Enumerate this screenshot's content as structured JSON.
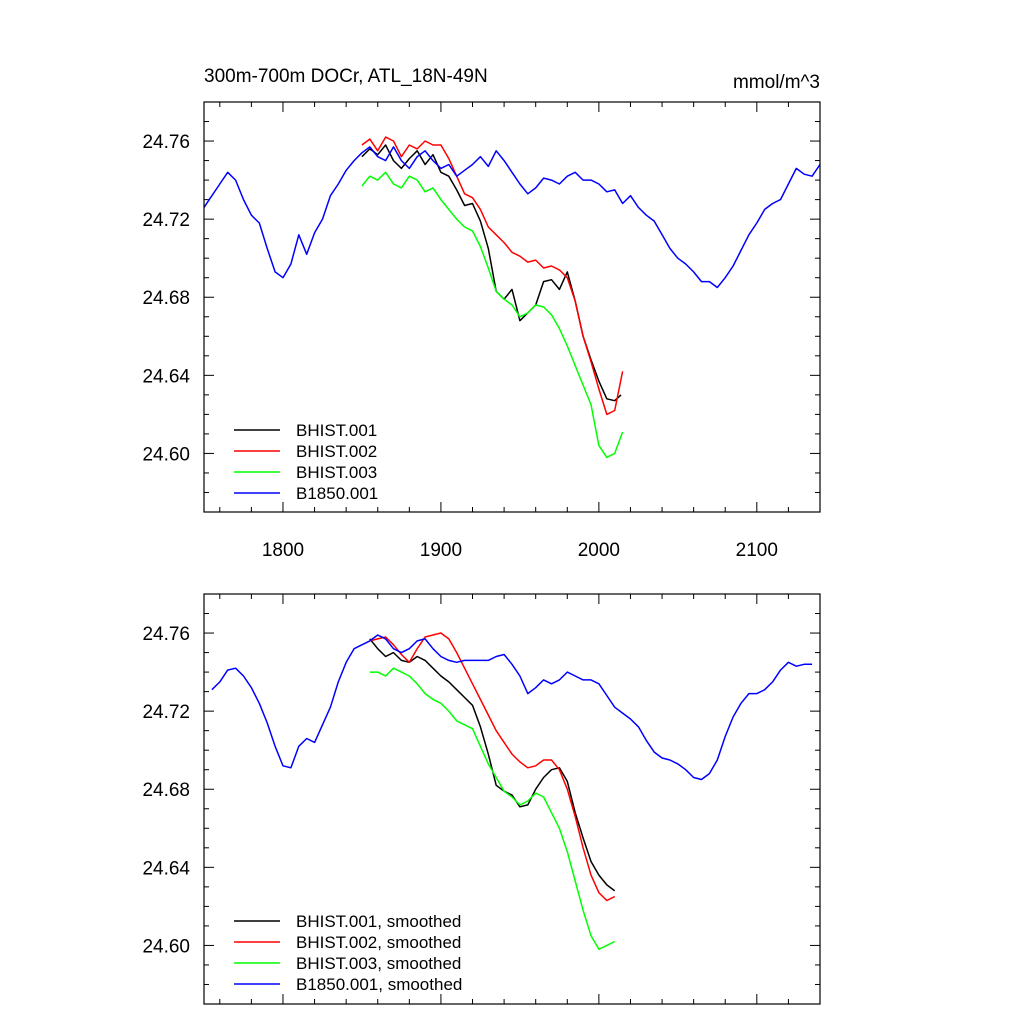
{
  "title": "300m-700m DOCr, ATL_18N-49N",
  "units": "mmol/m^3",
  "colors": {
    "BHIST.001": "#000000",
    "BHIST.002": "#ff0000",
    "BHIST.003": "#00ff00",
    "B1850.001": "#0000ff"
  },
  "chart_data": [
    {
      "type": "line",
      "title": "300m-700m DOCr, ATL_18N-49N",
      "units_label": "mmol/m^3",
      "xlim": [
        1750,
        2140
      ],
      "ylim": [
        24.57,
        24.78
      ],
      "x_ticks": [
        1800,
        1900,
        2000,
        2100
      ],
      "x_tick_labels": [
        "1800",
        "1900",
        "2000",
        "2100"
      ],
      "show_x_tick_labels": true,
      "y_ticks": [
        24.6,
        24.64,
        24.68,
        24.72,
        24.76
      ],
      "y_tick_labels": [
        "24.60",
        "24.64",
        "24.68",
        "24.72",
        "24.76"
      ],
      "legend_location": "bottom-left",
      "legend": [
        "BHIST.001",
        "BHIST.002",
        "BHIST.003",
        "B1850.001"
      ],
      "series": [
        {
          "name": "BHIST.001",
          "color": "#000000",
          "x": [
            1850,
            1855,
            1860,
            1865,
            1870,
            1875,
            1880,
            1885,
            1890,
            1895,
            1900,
            1905,
            1910,
            1915,
            1920,
            1925,
            1930,
            1935,
            1940,
            1945,
            1950,
            1955,
            1960,
            1965,
            1970,
            1975,
            1980,
            1985,
            1990,
            1995,
            2000,
            2005,
            2010,
            2014
          ],
          "y": [
            24.752,
            24.756,
            24.753,
            24.758,
            24.75,
            24.746,
            24.751,
            24.755,
            24.748,
            24.753,
            24.744,
            24.742,
            24.735,
            24.727,
            24.728,
            24.719,
            24.705,
            24.683,
            24.679,
            24.684,
            24.668,
            24.672,
            24.676,
            24.688,
            24.689,
            24.684,
            24.693,
            24.678,
            24.66,
            24.648,
            24.637,
            24.628,
            24.627,
            24.63
          ]
        },
        {
          "name": "BHIST.002",
          "color": "#ff0000",
          "x": [
            1850,
            1855,
            1860,
            1865,
            1870,
            1875,
            1880,
            1885,
            1890,
            1895,
            1900,
            1905,
            1910,
            1915,
            1920,
            1925,
            1930,
            1935,
            1940,
            1945,
            1950,
            1955,
            1960,
            1965,
            1970,
            1975,
            1980,
            1985,
            1990,
            1995,
            2000,
            2005,
            2010,
            2015
          ],
          "y": [
            24.758,
            24.761,
            24.755,
            24.762,
            24.76,
            24.752,
            24.758,
            24.756,
            24.76,
            24.758,
            24.758,
            24.751,
            24.742,
            24.733,
            24.731,
            24.725,
            24.716,
            24.712,
            24.708,
            24.703,
            24.701,
            24.698,
            24.699,
            24.695,
            24.696,
            24.694,
            24.69,
            24.678,
            24.66,
            24.647,
            24.633,
            24.62,
            24.622,
            24.642
          ]
        },
        {
          "name": "BHIST.003",
          "color": "#00ff00",
          "x": [
            1850,
            1855,
            1860,
            1865,
            1870,
            1875,
            1880,
            1885,
            1890,
            1895,
            1900,
            1905,
            1910,
            1915,
            1920,
            1925,
            1930,
            1935,
            1940,
            1945,
            1950,
            1955,
            1960,
            1965,
            1970,
            1975,
            1980,
            1985,
            1990,
            1995,
            2000,
            2005,
            2010,
            2015
          ],
          "y": [
            24.737,
            24.742,
            24.74,
            24.744,
            24.738,
            24.736,
            24.742,
            24.74,
            24.734,
            24.736,
            24.73,
            24.725,
            24.72,
            24.716,
            24.714,
            24.706,
            24.695,
            24.683,
            24.679,
            24.676,
            24.67,
            24.672,
            24.676,
            24.675,
            24.671,
            24.664,
            24.655,
            24.645,
            24.635,
            24.625,
            24.604,
            24.598,
            24.6,
            24.611
          ]
        },
        {
          "name": "B1850.001",
          "color": "#0000ff",
          "x": [
            1750,
            1755,
            1760,
            1765,
            1770,
            1775,
            1780,
            1785,
            1790,
            1795,
            1800,
            1805,
            1810,
            1815,
            1820,
            1825,
            1830,
            1835,
            1840,
            1845,
            1850,
            1855,
            1860,
            1865,
            1870,
            1875,
            1880,
            1885,
            1890,
            1895,
            1900,
            1905,
            1910,
            1915,
            1920,
            1925,
            1930,
            1935,
            1940,
            1945,
            1950,
            1955,
            1960,
            1965,
            1970,
            1975,
            1980,
            1985,
            1990,
            1995,
            2000,
            2005,
            2010,
            2015,
            2020,
            2025,
            2030,
            2035,
            2040,
            2045,
            2050,
            2055,
            2060,
            2065,
            2070,
            2075,
            2080,
            2085,
            2090,
            2095,
            2100,
            2105,
            2110,
            2115,
            2120,
            2125,
            2130,
            2135,
            2140
          ],
          "y": [
            24.726,
            24.732,
            24.738,
            24.744,
            24.74,
            24.73,
            24.722,
            24.718,
            24.705,
            24.693,
            24.69,
            24.697,
            24.712,
            24.702,
            24.713,
            24.72,
            24.732,
            24.738,
            24.745,
            24.75,
            24.754,
            24.757,
            24.752,
            24.75,
            24.757,
            24.75,
            24.746,
            24.752,
            24.755,
            24.75,
            24.746,
            24.748,
            24.742,
            24.745,
            24.748,
            24.752,
            24.747,
            24.755,
            24.75,
            24.744,
            24.738,
            24.733,
            24.736,
            24.741,
            24.74,
            24.738,
            24.742,
            24.744,
            24.74,
            24.74,
            24.738,
            24.734,
            24.735,
            24.728,
            24.732,
            24.726,
            24.722,
            24.719,
            24.712,
            24.705,
            24.7,
            24.697,
            24.693,
            24.688,
            24.688,
            24.685,
            24.69,
            24.696,
            24.704,
            24.712,
            24.718,
            24.725,
            24.728,
            24.73,
            24.738,
            24.746,
            24.743,
            24.742,
            24.748
          ]
        }
      ]
    },
    {
      "type": "line",
      "title": "",
      "xlim": [
        1750,
        2140
      ],
      "ylim": [
        24.57,
        24.78
      ],
      "x_ticks": [
        1800,
        1900,
        2000,
        2100
      ],
      "x_tick_labels": [],
      "show_x_tick_labels": false,
      "y_ticks": [
        24.6,
        24.64,
        24.68,
        24.72,
        24.76
      ],
      "y_tick_labels": [
        "24.60",
        "24.64",
        "24.68",
        "24.72",
        "24.76"
      ],
      "legend_location": "bottom-left",
      "legend": [
        "BHIST.001, smoothed",
        "BHIST.002, smoothed",
        "BHIST.003, smoothed",
        "B1850.001, smoothed"
      ],
      "series": [
        {
          "name": "BHIST.001, smoothed",
          "color": "#000000",
          "x": [
            1855,
            1860,
            1865,
            1870,
            1875,
            1880,
            1885,
            1890,
            1895,
            1900,
            1905,
            1910,
            1915,
            1920,
            1925,
            1930,
            1935,
            1940,
            1945,
            1950,
            1955,
            1960,
            1965,
            1970,
            1975,
            1980,
            1985,
            1990,
            1995,
            2000,
            2005,
            2010
          ],
          "y": [
            24.757,
            24.752,
            24.748,
            24.75,
            24.746,
            24.745,
            24.748,
            24.746,
            24.742,
            24.738,
            24.735,
            24.731,
            24.727,
            24.723,
            24.712,
            24.698,
            24.682,
            24.679,
            24.677,
            24.671,
            24.672,
            24.68,
            24.686,
            24.69,
            24.691,
            24.684,
            24.668,
            24.655,
            24.643,
            24.636,
            24.631,
            24.628
          ]
        },
        {
          "name": "BHIST.002, smoothed",
          "color": "#ff0000",
          "x": [
            1855,
            1860,
            1865,
            1870,
            1875,
            1880,
            1885,
            1890,
            1895,
            1900,
            1905,
            1910,
            1915,
            1920,
            1925,
            1930,
            1935,
            1940,
            1945,
            1950,
            1955,
            1960,
            1965,
            1970,
            1975,
            1980,
            1985,
            1990,
            1995,
            2000,
            2005,
            2010
          ],
          "y": [
            24.756,
            24.757,
            24.758,
            24.754,
            24.749,
            24.745,
            24.752,
            24.758,
            24.759,
            24.76,
            24.757,
            24.75,
            24.742,
            24.734,
            24.726,
            24.718,
            24.71,
            24.704,
            24.698,
            24.694,
            24.691,
            24.692,
            24.695,
            24.695,
            24.69,
            24.68,
            24.666,
            24.65,
            24.636,
            24.627,
            24.623,
            24.625
          ]
        },
        {
          "name": "BHIST.003, smoothed",
          "color": "#00ff00",
          "x": [
            1855,
            1860,
            1865,
            1870,
            1875,
            1880,
            1885,
            1890,
            1895,
            1900,
            1905,
            1910,
            1915,
            1920,
            1925,
            1930,
            1935,
            1940,
            1945,
            1950,
            1955,
            1960,
            1965,
            1970,
            1975,
            1980,
            1985,
            1990,
            1995,
            2000,
            2005,
            2010
          ],
          "y": [
            24.74,
            24.74,
            24.738,
            24.742,
            24.74,
            24.738,
            24.734,
            24.729,
            24.726,
            24.724,
            24.72,
            24.715,
            24.713,
            24.711,
            24.702,
            24.693,
            24.686,
            24.679,
            24.676,
            24.672,
            24.674,
            24.678,
            24.676,
            24.668,
            24.66,
            24.648,
            24.633,
            24.618,
            24.605,
            24.598,
            24.6,
            24.602
          ]
        },
        {
          "name": "B1850.001, smoothed",
          "color": "#0000ff",
          "x": [
            1755,
            1760,
            1765,
            1770,
            1775,
            1780,
            1785,
            1790,
            1795,
            1800,
            1805,
            1810,
            1815,
            1820,
            1825,
            1830,
            1835,
            1840,
            1845,
            1850,
            1855,
            1860,
            1865,
            1870,
            1875,
            1880,
            1885,
            1890,
            1895,
            1900,
            1905,
            1910,
            1915,
            1920,
            1925,
            1930,
            1935,
            1940,
            1945,
            1950,
            1955,
            1960,
            1965,
            1970,
            1975,
            1980,
            1985,
            1990,
            1995,
            2000,
            2005,
            2010,
            2015,
            2020,
            2025,
            2030,
            2035,
            2040,
            2045,
            2050,
            2055,
            2060,
            2065,
            2070,
            2075,
            2080,
            2085,
            2090,
            2095,
            2100,
            2105,
            2110,
            2115,
            2120,
            2125,
            2130,
            2135
          ],
          "y": [
            24.731,
            24.735,
            24.741,
            24.742,
            24.738,
            24.732,
            24.724,
            24.714,
            24.702,
            24.692,
            24.691,
            24.702,
            24.706,
            24.704,
            24.713,
            24.722,
            24.735,
            24.745,
            24.752,
            24.754,
            24.756,
            24.759,
            24.757,
            24.752,
            24.75,
            24.752,
            24.756,
            24.757,
            24.752,
            24.748,
            24.746,
            24.745,
            24.746,
            24.746,
            24.746,
            24.746,
            24.748,
            24.749,
            24.744,
            24.738,
            24.729,
            24.732,
            24.736,
            24.734,
            24.736,
            24.74,
            24.738,
            24.736,
            24.736,
            24.734,
            24.728,
            24.722,
            24.719,
            24.716,
            24.712,
            24.705,
            24.699,
            24.696,
            24.695,
            24.693,
            24.69,
            24.686,
            24.685,
            24.688,
            24.695,
            24.707,
            24.717,
            24.724,
            24.729,
            24.729,
            24.731,
            24.735,
            24.741,
            24.745,
            24.743,
            24.744,
            24.744
          ]
        }
      ]
    }
  ]
}
